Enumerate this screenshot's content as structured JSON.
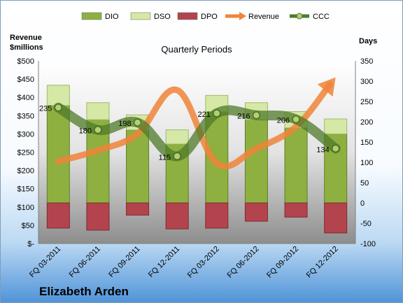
{
  "company": "Elizabeth Arden",
  "chart_data": {
    "type": "bar",
    "title": "Quarterly Periods",
    "categories": [
      "FQ 03-2011",
      "FQ 06-2011",
      "FQ 09-2011",
      "FQ 12-2011",
      "FQ 03-2012",
      "FQ 06-2012",
      "FQ 09-2012",
      "FQ 12-2012"
    ],
    "y_left": {
      "label_line1": "Revenue",
      "label_line2": "$millions",
      "range": [
        0,
        500
      ],
      "step": 50,
      "tick_labels": [
        "$-",
        "$50",
        "$100",
        "$150",
        "$200",
        "$250",
        "$300",
        "$350",
        "$400",
        "$450",
        "$500"
      ]
    },
    "y_right": {
      "label": "Days",
      "range": [
        -100,
        350
      ],
      "step": 50,
      "tick_labels": [
        "-100",
        "-50",
        "0",
        "50",
        "100",
        "150",
        "200",
        "250",
        "300",
        "350"
      ]
    },
    "grid": false,
    "legend_position": "top",
    "series": [
      {
        "name": "DIO",
        "type": "bar",
        "axis": "right",
        "color": "#8db040",
        "values": [
          240,
          205,
          180,
          145,
          225,
          205,
          185,
          170
        ]
      },
      {
        "name": "DSO",
        "type": "bar",
        "axis": "right",
        "color": "#d5e8a5",
        "values": [
          50,
          42,
          37,
          35,
          40,
          42,
          40,
          37
        ]
      },
      {
        "name": "DPO",
        "type": "bar",
        "axis": "right",
        "color": "#b3444e",
        "values": [
          -62,
          -67,
          -30,
          -64,
          -62,
          -45,
          -35,
          -74
        ]
      },
      {
        "name": "Revenue",
        "type": "line",
        "axis": "left",
        "color": "#f0843a",
        "values": [
          225,
          255,
          300,
          420,
          220,
          260,
          320,
          455
        ]
      },
      {
        "name": "CCC",
        "type": "line",
        "axis": "right",
        "color": "#4f7a2a",
        "values": [
          235,
          180,
          198,
          115,
          221,
          216,
          206,
          134
        ]
      }
    ],
    "data_labels": [
      "235",
      "180",
      "198",
      "115",
      "221",
      "216",
      "206",
      "134"
    ]
  }
}
